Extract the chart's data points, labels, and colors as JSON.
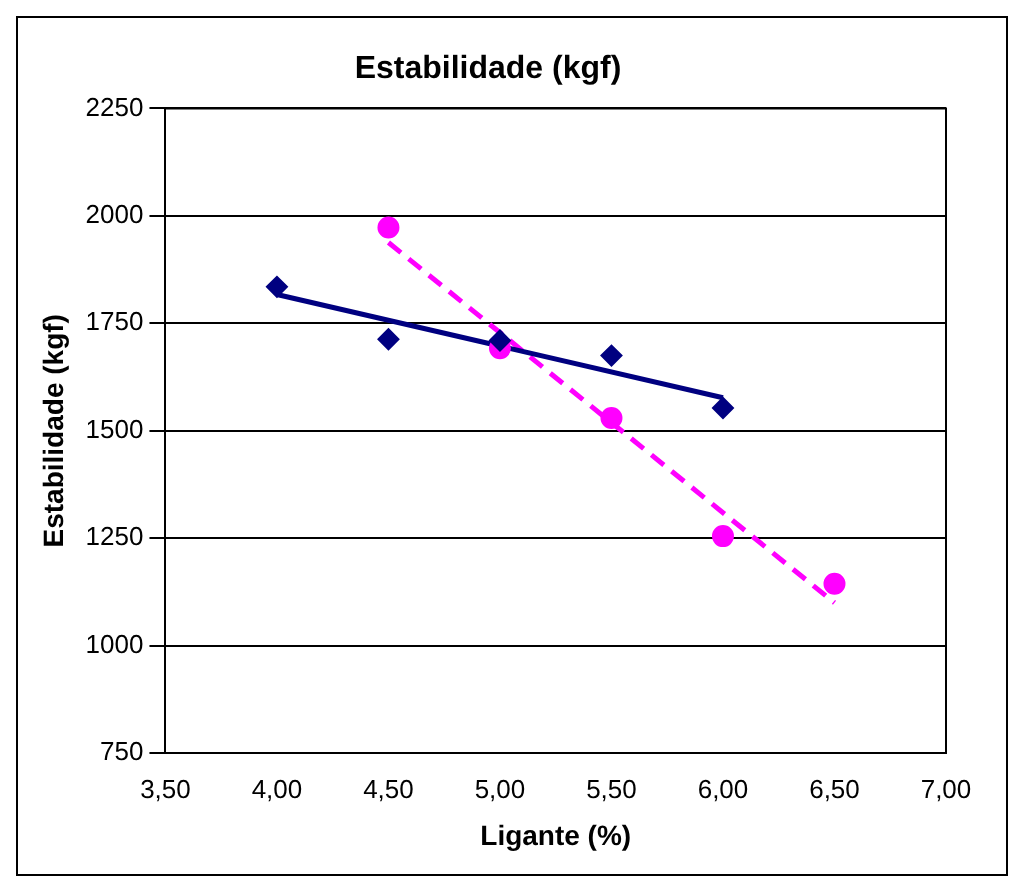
{
  "chart_data": {
    "type": "scatter",
    "title": "Estabilidade (kgf)",
    "xlabel": "Ligante (%)",
    "ylabel": "Estabilidade (kgf)",
    "xlim": [
      3.5,
      7
    ],
    "xticks": [
      {
        "value": 3.5,
        "label": "3,50"
      },
      {
        "value": 4,
        "label": "4,00"
      },
      {
        "value": 4.5,
        "label": "4,50"
      },
      {
        "value": 5,
        "label": "5,00"
      },
      {
        "value": 5.5,
        "label": "5,50"
      },
      {
        "value": 6,
        "label": "6,00"
      },
      {
        "value": 6.5,
        "label": "6,50"
      },
      {
        "value": 7,
        "label": "7,00"
      }
    ],
    "ylim": [
      750,
      2250
    ],
    "yticks": [
      750,
      1000,
      1250,
      1500,
      1750,
      2000,
      2250
    ],
    "grid": "y",
    "legend": false,
    "series": [
      {
        "type": "scatter",
        "color": "#000080",
        "marker": "diamond",
        "x": [
          4,
          4.5,
          5,
          5.5,
          6
        ],
        "values": [
          1835,
          1713,
          1710,
          1675,
          1553
        ]
      },
      {
        "type": "scatter",
        "color": "#ff00ff",
        "marker": "circle",
        "x": [
          4.5,
          5,
          5.5,
          6,
          6.5
        ],
        "values": [
          1973,
          1692,
          1530,
          1255,
          1144
        ]
      },
      {
        "type": "line",
        "color": "#000080",
        "marker": "none",
        "line_style": "solid",
        "x": [
          4,
          6
        ],
        "values": [
          1817,
          1577
        ]
      },
      {
        "type": "line",
        "color": "#ff00ff",
        "marker": "none",
        "line_style": "dashed",
        "x": [
          4.5,
          6.5
        ],
        "values": [
          1938,
          1100
        ]
      }
    ]
  }
}
